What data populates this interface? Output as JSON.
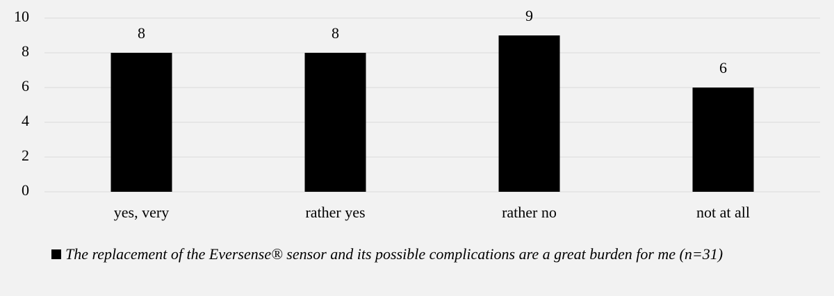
{
  "chart_data": {
    "type": "bar",
    "categories": [
      "yes, very",
      "rather yes",
      "rather no",
      "not at all"
    ],
    "series": [
      {
        "name": "The replacement of the Eversense® sensor and its possible complications are a great burden for me (n=31)",
        "color": "#000000",
        "values": [
          8,
          8,
          9,
          6
        ]
      }
    ],
    "ylim": [
      0,
      10
    ],
    "yticks": [
      0,
      2,
      4,
      6,
      8,
      10
    ],
    "grid": true,
    "legend": "bottom"
  }
}
